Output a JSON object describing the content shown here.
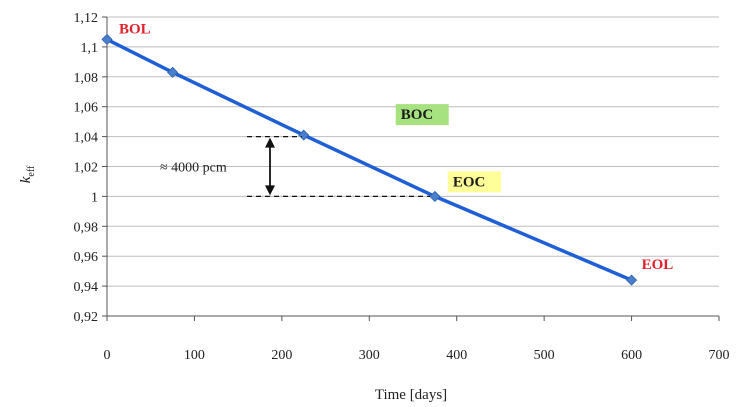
{
  "chart_data": {
    "type": "line",
    "xlabel": "Time [days]",
    "ylabel": "k_eff",
    "ylabel_main": "k",
    "ylabel_sub": "eff",
    "xlim": [
      0,
      700
    ],
    "ylim": [
      0.92,
      1.12
    ],
    "xticks": [
      0,
      100,
      200,
      300,
      400,
      500,
      600,
      700
    ],
    "xtick_labels": [
      "0",
      "100",
      "200",
      "300",
      "400",
      "500",
      "600",
      "700"
    ],
    "yticks": [
      0.92,
      0.94,
      0.96,
      0.98,
      1.0,
      1.02,
      1.04,
      1.06,
      1.08,
      1.1,
      1.12
    ],
    "ytick_labels": [
      "0,92",
      "0,94",
      "0,96",
      "0,98",
      "1",
      "1,02",
      "1,04",
      "1,06",
      "1,08",
      "1,1",
      "1,12"
    ],
    "grid": "horizontal",
    "series": [
      {
        "color": "#1f5fd6",
        "x": [
          0,
          75,
          225,
          375,
          600
        ],
        "y": [
          1.105,
          1.083,
          1.041,
          1.0,
          0.944
        ]
      }
    ],
    "annotations": [
      {
        "text": "BOL",
        "x": 0,
        "y": 1.105,
        "style": "red"
      },
      {
        "text": "BOC",
        "x": 225,
        "y": 1.041,
        "style": "green"
      },
      {
        "text": "EOC",
        "x": 375,
        "y": 1.0,
        "style": "yellow"
      },
      {
        "text": "EOL",
        "x": 600,
        "y": 0.944,
        "style": "red"
      }
    ],
    "difference": {
      "label": "≈ 4000 pcm",
      "y_top": 1.04,
      "y_bottom": 1.0
    }
  },
  "colors": {
    "line": "#1f5fd6",
    "marker": "#4a7fd0",
    "grid": "#bdbdbd",
    "annotation_red": "#e0202a",
    "boc_highlight": "#a6e27f",
    "eoc_highlight": "#ffff99"
  }
}
